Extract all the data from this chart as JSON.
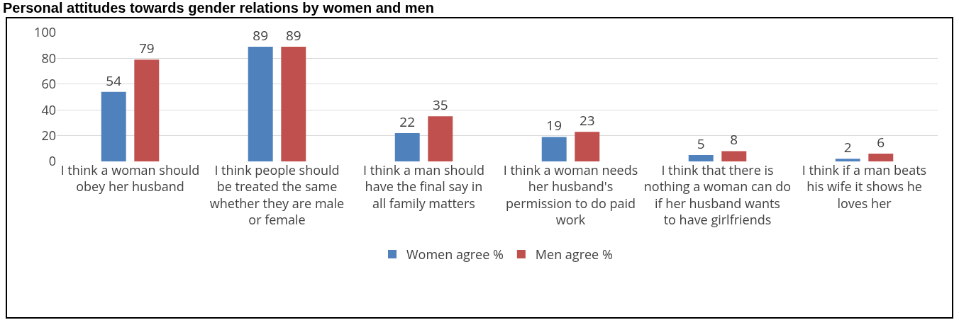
{
  "chart_data": {
    "type": "bar",
    "title": "Personal attitudes towards gender relations by women and men",
    "categories": [
      "I think a woman should obey her husband",
      "I think people should be treated the same whether they are male or female",
      "I think a man should have the final say in all family matters",
      "I think a woman needs her husband's permission to do paid work",
      "I think that there is nothing a woman can do if her husband wants to have girlfriends",
      "I think if a man beats his wife it shows he loves her"
    ],
    "series": [
      {
        "name": "Women agree %",
        "color": "#4f81bd",
        "values": [
          54,
          89,
          22,
          19,
          5,
          2
        ]
      },
      {
        "name": "Men agree %",
        "color": "#c0504d",
        "values": [
          79,
          89,
          35,
          23,
          8,
          6
        ]
      }
    ],
    "ylim": [
      0,
      100
    ],
    "yticks": [
      0,
      20,
      40,
      60,
      80,
      100
    ],
    "grid": "y",
    "legend": "bottom",
    "data_labels": true
  }
}
